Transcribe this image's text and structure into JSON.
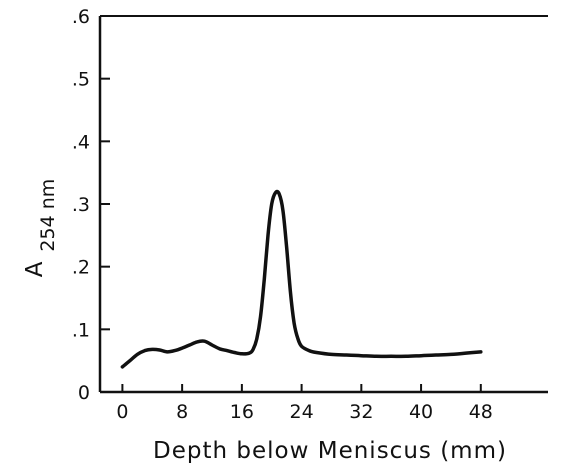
{
  "chart_data": {
    "type": "line",
    "title": "",
    "xlabel": "Depth below Meniscus (mm)",
    "ylabel_main": "A",
    "ylabel_sub": "254 nm",
    "xlim": [
      -3,
      57
    ],
    "ylim": [
      0,
      0.6
    ],
    "x_ticks": [
      0,
      8,
      16,
      24,
      32,
      40,
      48
    ],
    "x_tick_labels": [
      "0",
      "8",
      "16",
      "24",
      "32",
      "40",
      "48"
    ],
    "y_ticks": [
      0,
      0.1,
      0.2,
      0.3,
      0.4,
      0.5,
      0.6
    ],
    "y_tick_labels": [
      "0",
      ".1",
      ".2",
      ".3",
      ".4",
      ".5",
      ".6"
    ],
    "grid": false,
    "series": [
      {
        "x": [
          0,
          1,
          2,
          3,
          4,
          5,
          6,
          7,
          8,
          9,
          10,
          11,
          12,
          13,
          14,
          15,
          16,
          17,
          17.5,
          18,
          18.5,
          19,
          19.5,
          20,
          20.5,
          21,
          21.5,
          22,
          22.5,
          23,
          23.5,
          24,
          25,
          26,
          28,
          30,
          32,
          34,
          36,
          38,
          40,
          42,
          44,
          46,
          48
        ],
        "y": [
          0.04,
          0.05,
          0.06,
          0.066,
          0.068,
          0.067,
          0.064,
          0.066,
          0.07,
          0.075,
          0.08,
          0.081,
          0.075,
          0.069,
          0.066,
          0.063,
          0.061,
          0.062,
          0.068,
          0.085,
          0.12,
          0.18,
          0.25,
          0.3,
          0.318,
          0.316,
          0.29,
          0.23,
          0.16,
          0.11,
          0.085,
          0.073,
          0.066,
          0.063,
          0.06,
          0.059,
          0.058,
          0.057,
          0.057,
          0.057,
          0.058,
          0.059,
          0.06,
          0.062,
          0.064
        ]
      }
    ]
  }
}
